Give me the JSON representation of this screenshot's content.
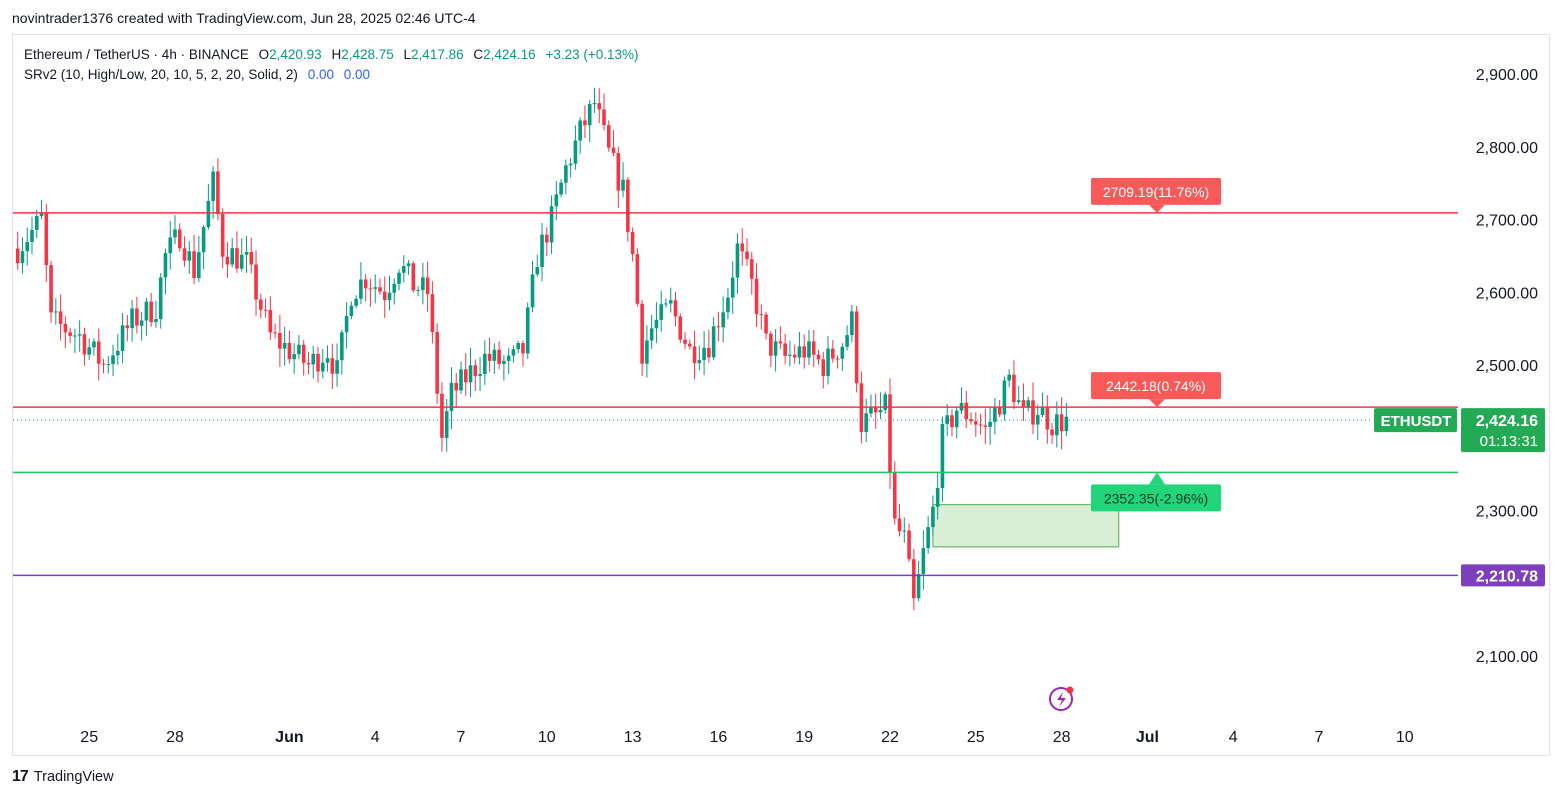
{
  "header": {
    "credit": "novintrader1376 created with TradingView.com, Jun 28, 2025 02:46 UTC-4"
  },
  "legend": {
    "symbol": "Ethereum / TetherUS · 4h · BINANCE",
    "o_label": "O",
    "o_value": "2,420.93",
    "h_label": "H",
    "h_value": "2,428.75",
    "l_label": "L",
    "l_value": "2,417.86",
    "c_label": "C",
    "c_value": "2,424.16",
    "change": "+3.23 (+0.13%)",
    "indicator": "SRv2 (10, High/Low, 20, 10, 5, 2, 20, Solid, 2)",
    "indicator_values": [
      "0.00",
      "0.00"
    ]
  },
  "footer": {
    "brand": "TradingView",
    "logo_glyph": "17"
  },
  "colors": {
    "up": "#089981",
    "down": "#f23645",
    "resistance": "#f23645",
    "support": "#22c55e",
    "purple": "#7e3fbf",
    "zone_fill": "#d8efd6",
    "axis_text": "#131722",
    "price_label_bg": "#22ab54"
  },
  "chart_data": {
    "type": "candlestick",
    "symbol": "ETHUSDT",
    "timeframe": "4h",
    "yaxis": {
      "ticks": [
        2100,
        2300,
        2500,
        2600,
        2700,
        2800,
        2900
      ],
      "tick_labels": [
        "2,100.00",
        "2,300.00",
        "2,500.00",
        "2,600.00",
        "2,700.00",
        "2,800.00",
        "2,900.00"
      ],
      "ylim": [
        2000,
        2960
      ]
    },
    "xaxis": {
      "tick_labels": [
        "25",
        "28",
        "Jun",
        "4",
        "7",
        "10",
        "13",
        "16",
        "19",
        "22",
        "25",
        "28",
        "Jul",
        "4",
        "7",
        "10"
      ],
      "tick_dates": [
        "2025-05-25",
        "2025-05-28",
        "2025-06-01",
        "2025-06-04",
        "2025-06-07",
        "2025-06-10",
        "2025-06-13",
        "2025-06-16",
        "2025-06-19",
        "2025-06-22",
        "2025-06-25",
        "2025-06-28",
        "2025-07-01",
        "2025-07-04",
        "2025-07-07",
        "2025-07-10"
      ],
      "range": [
        "2025-05-22T12:00",
        "2025-07-12T00:00"
      ]
    },
    "ohlc_anchor_closes": [
      [
        "2025-05-22T12:00",
        2660
      ],
      [
        "2025-05-23T08:00",
        2700
      ],
      [
        "2025-05-23T16:00",
        2560
      ],
      [
        "2025-05-24T16:00",
        2540
      ],
      [
        "2025-05-25T12:00",
        2500
      ],
      [
        "2025-05-26T12:00",
        2560
      ],
      [
        "2025-05-27T08:00",
        2580
      ],
      [
        "2025-05-27T16:00",
        2650
      ],
      [
        "2025-05-28T04:00",
        2680
      ],
      [
        "2025-05-28T16:00",
        2630
      ],
      [
        "2025-05-29T08:00",
        2750
      ],
      [
        "2025-05-29T16:00",
        2660
      ],
      [
        "2025-05-30T12:00",
        2640
      ],
      [
        "2025-05-31T08:00",
        2540
      ],
      [
        "2025-06-01T00:00",
        2520
      ],
      [
        "2025-06-01T16:00",
        2500
      ],
      [
        "2025-06-02T08:00",
        2520
      ],
      [
        "2025-06-02T16:00",
        2490
      ],
      [
        "2025-06-03T04:00",
        2600
      ],
      [
        "2025-06-03T16:00",
        2620
      ],
      [
        "2025-06-04T08:00",
        2600
      ],
      [
        "2025-06-04T20:00",
        2640
      ],
      [
        "2025-06-05T08:00",
        2610
      ],
      [
        "2025-06-05T20:00",
        2600
      ],
      [
        "2025-06-06T08:00",
        2400
      ],
      [
        "2025-06-06T16:00",
        2460
      ],
      [
        "2025-06-07T08:00",
        2490
      ],
      [
        "2025-06-07T20:00",
        2510
      ],
      [
        "2025-06-08T16:00",
        2500
      ],
      [
        "2025-06-09T04:00",
        2520
      ],
      [
        "2025-06-09T16:00",
        2650
      ],
      [
        "2025-06-10T04:00",
        2700
      ],
      [
        "2025-06-10T16:00",
        2770
      ],
      [
        "2025-06-11T04:00",
        2820
      ],
      [
        "2025-06-11T16:00",
        2860
      ],
      [
        "2025-06-12T04:00",
        2790
      ],
      [
        "2025-06-12T16:00",
        2740
      ],
      [
        "2025-06-13T00:00",
        2650
      ],
      [
        "2025-06-13T08:00",
        2520
      ],
      [
        "2025-06-13T16:00",
        2550
      ],
      [
        "2025-06-14T08:00",
        2580
      ],
      [
        "2025-06-15T00:00",
        2520
      ],
      [
        "2025-06-15T16:00",
        2530
      ],
      [
        "2025-06-16T08:00",
        2600
      ],
      [
        "2025-06-16T16:00",
        2660
      ],
      [
        "2025-06-17T04:00",
        2610
      ],
      [
        "2025-06-17T16:00",
        2530
      ],
      [
        "2025-06-18T08:00",
        2510
      ],
      [
        "2025-06-19T00:00",
        2520
      ],
      [
        "2025-06-19T16:00",
        2500
      ],
      [
        "2025-06-20T08:00",
        2530
      ],
      [
        "2025-06-20T16:00",
        2560
      ],
      [
        "2025-06-21T00:00",
        2420
      ],
      [
        "2025-06-21T12:00",
        2430
      ],
      [
        "2025-06-21T20:00",
        2440
      ],
      [
        "2025-06-22T04:00",
        2280
      ],
      [
        "2025-06-22T12:00",
        2260
      ],
      [
        "2025-06-22T20:00",
        2170
      ],
      [
        "2025-06-23T04:00",
        2240
      ],
      [
        "2025-06-23T12:00",
        2300
      ],
      [
        "2025-06-23T20:00",
        2400
      ],
      [
        "2025-06-24T08:00",
        2440
      ],
      [
        "2025-06-24T20:00",
        2430
      ],
      [
        "2025-06-25T08:00",
        2410
      ],
      [
        "2025-06-25T20:00",
        2450
      ],
      [
        "2025-06-26T04:00",
        2480
      ],
      [
        "2025-06-26T16:00",
        2430
      ],
      [
        "2025-06-27T04:00",
        2440
      ],
      [
        "2025-06-27T16:00",
        2420
      ],
      [
        "2025-06-28T04:00",
        2424.16
      ]
    ],
    "last_price": {
      "value": 2424.16,
      "label": "2,424.16",
      "symbol_tag": "ETHUSDT",
      "countdown": "01:13:31"
    },
    "levels": [
      {
        "kind": "resistance",
        "price": 2709.19,
        "label": "2709.19(11.76%)"
      },
      {
        "kind": "resistance",
        "price": 2442.18,
        "label": "2442.18(0.74%)"
      },
      {
        "kind": "support",
        "price": 2352.35,
        "label": "2352.35(-2.96%)"
      },
      {
        "kind": "horizontal",
        "price": 2210.78,
        "label": "2,210.78"
      }
    ],
    "zone": {
      "kind": "demand",
      "x_start": "2025-06-23T12:00",
      "x_end": "2025-06-30T00:00",
      "price_top": 2308,
      "price_bottom": 2250
    },
    "grid": false,
    "legend_position": "top-left"
  }
}
